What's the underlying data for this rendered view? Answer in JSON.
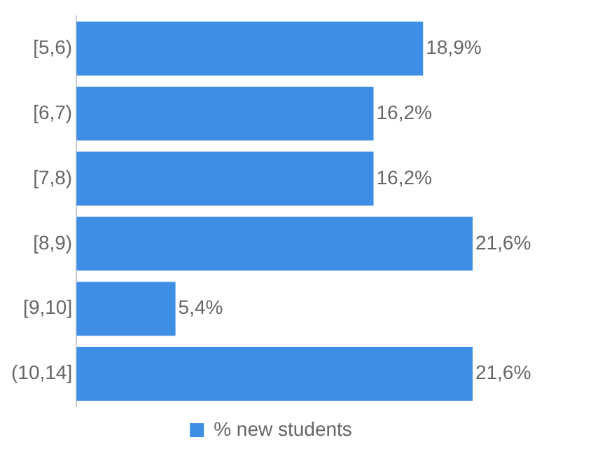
{
  "chart_data": {
    "type": "bar",
    "orientation": "horizontal",
    "categories": [
      "[5,6)",
      "[6,7)",
      "[7,8)",
      "[8,9)",
      "[9,10]",
      "(10,14]"
    ],
    "series": [
      {
        "name": "% new students",
        "color": "#3f8ee6",
        "values": [
          18.9,
          16.2,
          16.2,
          21.6,
          5.4,
          21.6
        ],
        "value_labels": [
          "18,9%",
          "16,2%",
          "16,2%",
          "21,6%",
          "5,4%",
          "21,6%"
        ]
      }
    ],
    "tick_labels": "y",
    "legend": "bottom"
  }
}
